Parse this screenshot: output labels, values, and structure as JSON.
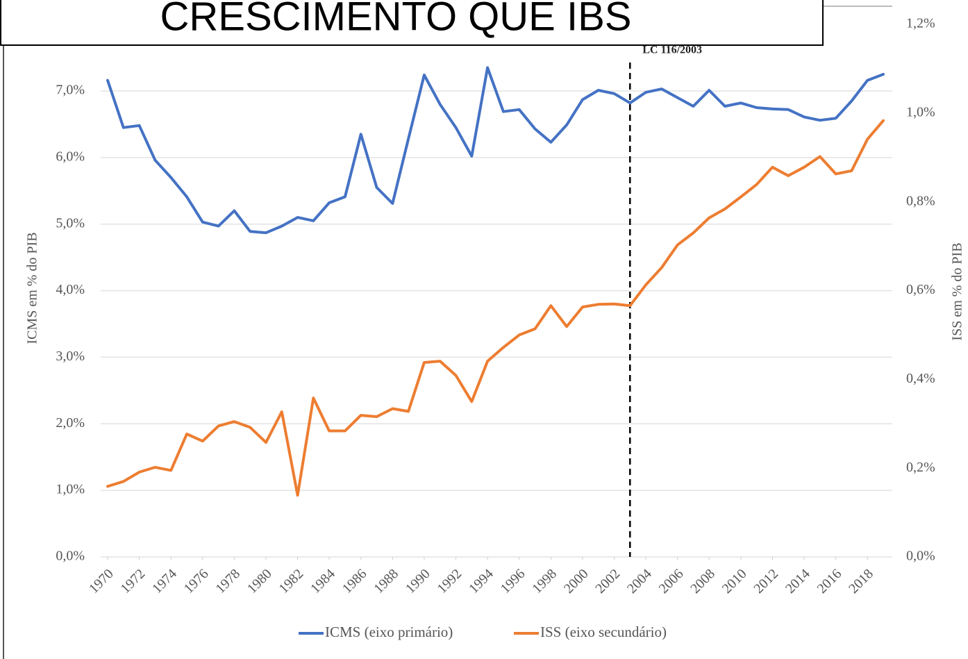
{
  "chart_data": {
    "type": "line",
    "title": "CRESCIMENTO QUE IBS",
    "y_label": "ICMS em % do PIB",
    "y2_label": "ISS em % do PIB",
    "annotations": [
      {
        "text": "LC 116/2003",
        "x": 2003
      }
    ],
    "x": [
      1970,
      1971,
      1972,
      1973,
      1974,
      1975,
      1976,
      1977,
      1978,
      1979,
      1980,
      1981,
      1982,
      1983,
      1984,
      1985,
      1986,
      1987,
      1988,
      1989,
      1990,
      1991,
      1992,
      1993,
      1994,
      1995,
      1996,
      1997,
      1998,
      1999,
      2000,
      2001,
      2002,
      2003,
      2004,
      2005,
      2006,
      2007,
      2008,
      2009,
      2010,
      2011,
      2012,
      2013,
      2014,
      2015,
      2016,
      2017,
      2018,
      2019
    ],
    "xlim": [
      1970,
      2019
    ],
    "xticks": [
      1970,
      1972,
      1974,
      1976,
      1978,
      1980,
      1982,
      1984,
      1986,
      1988,
      1990,
      1992,
      1994,
      1996,
      1998,
      2000,
      2002,
      2004,
      2006,
      2008,
      2010,
      2012,
      2014,
      2016,
      2018
    ],
    "ylim": [
      0,
      7.0
    ],
    "yticks": [
      {
        "value": 0,
        "label": "0,0%"
      },
      {
        "value": 1,
        "label": "1,0%"
      },
      {
        "value": 2,
        "label": "2,0%"
      },
      {
        "value": 3,
        "label": "3,0%"
      },
      {
        "value": 4,
        "label": "4,0%"
      },
      {
        "value": 5,
        "label": "5,0%"
      },
      {
        "value": 6,
        "label": "6,0%"
      },
      {
        "value": 7,
        "label": "7,0%"
      }
    ],
    "y2lim": [
      0,
      1.2
    ],
    "y2ticks": [
      {
        "value": 0,
        "label": "0,0%"
      },
      {
        "value": 0.2,
        "label": "0,2%"
      },
      {
        "value": 0.4,
        "label": "0,4%"
      },
      {
        "value": 0.6,
        "label": "0,6%"
      },
      {
        "value": 0.8,
        "label": "0,8%"
      },
      {
        "value": 1.0,
        "label": "1,0%"
      },
      {
        "value": 1.2,
        "label": "1,2%"
      }
    ],
    "grid": true,
    "legend": "bottom",
    "series": [
      {
        "name": "ICMS (eixo primário)",
        "color": "#4472c4",
        "axis": "y",
        "values": [
          7.16,
          6.45,
          6.48,
          5.96,
          5.7,
          5.41,
          5.03,
          4.97,
          5.2,
          4.89,
          4.87,
          4.97,
          5.1,
          5.05,
          5.32,
          5.41,
          6.35,
          5.55,
          5.31,
          6.28,
          7.24,
          6.8,
          6.45,
          6.02,
          7.35,
          6.69,
          6.72,
          6.43,
          6.23,
          6.49,
          6.87,
          7.01,
          6.96,
          6.82,
          6.98,
          7.03,
          6.9,
          6.77,
          7.01,
          6.77,
          6.82,
          6.75,
          6.73,
          6.72,
          6.61,
          6.56,
          6.59,
          6.85,
          7.16,
          7.25
        ]
      },
      {
        "name": "ISS (eixo secundário)",
        "color": "#ed7d31",
        "axis": "y2",
        "values": [
          0.159,
          0.17,
          0.191,
          0.202,
          0.195,
          0.277,
          0.261,
          0.295,
          0.305,
          0.292,
          0.258,
          0.327,
          0.139,
          0.358,
          0.284,
          0.284,
          0.319,
          0.316,
          0.334,
          0.328,
          0.438,
          0.441,
          0.409,
          0.35,
          0.441,
          0.472,
          0.5,
          0.514,
          0.566,
          0.519,
          0.563,
          0.569,
          0.57,
          0.566,
          0.613,
          0.652,
          0.703,
          0.73,
          0.764,
          0.784,
          0.811,
          0.839,
          0.878,
          0.859,
          0.878,
          0.902,
          0.863,
          0.87,
          0.941,
          0.983
        ]
      }
    ]
  }
}
